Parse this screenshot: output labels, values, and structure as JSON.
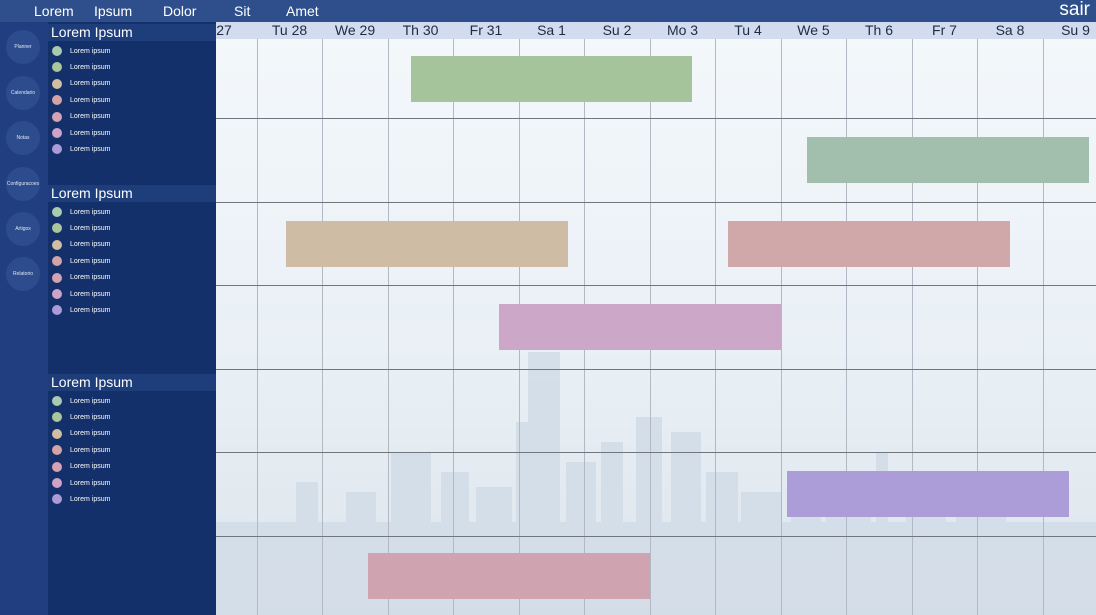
{
  "topnav": {
    "items": [
      "Lorem",
      "Ipsum",
      "Dolor",
      "Sit",
      "Amet"
    ],
    "exit_label": "sair"
  },
  "sidebar": {
    "buttons": [
      "Planner",
      "Calendario",
      "Notas",
      "Configuracoes",
      "Artigos",
      "Relatorio"
    ]
  },
  "groups": [
    {
      "title": "Lorem Ipsum",
      "items": [
        {
          "label": "Lorem ipsum",
          "color": "#a8cbb0"
        },
        {
          "label": "Lorem ipsum",
          "color": "#a9c79b"
        },
        {
          "label": "Lorem ipsum",
          "color": "#d2bfa2"
        },
        {
          "label": "Lorem ipsum",
          "color": "#d3a3a6"
        },
        {
          "label": "Lorem ipsum",
          "color": "#d6a2b3"
        },
        {
          "label": "Lorem ipsum",
          "color": "#cfa3c8"
        },
        {
          "label": "Lorem ipsum",
          "color": "#ad9bd8"
        }
      ]
    },
    {
      "title": "Lorem Ipsum",
      "items": [
        {
          "label": "Lorem ipsum",
          "color": "#a8cbb0"
        },
        {
          "label": "Lorem ipsum",
          "color": "#a9c79b"
        },
        {
          "label": "Lorem ipsum",
          "color": "#d2bfa2"
        },
        {
          "label": "Lorem ipsum",
          "color": "#d3a3a6"
        },
        {
          "label": "Lorem ipsum",
          "color": "#d6a2b3"
        },
        {
          "label": "Lorem ipsum",
          "color": "#cfa3c8"
        },
        {
          "label": "Lorem ipsum",
          "color": "#ad9bd8"
        }
      ]
    },
    {
      "title": "Lorem Ipsum",
      "items": [
        {
          "label": "Lorem ipsum",
          "color": "#a8cbb0"
        },
        {
          "label": "Lorem ipsum",
          "color": "#a9c79b"
        },
        {
          "label": "Lorem ipsum",
          "color": "#d2bfa2"
        },
        {
          "label": "Lorem ipsum",
          "color": "#d3a3a6"
        },
        {
          "label": "Lorem ipsum",
          "color": "#d6a2b3"
        },
        {
          "label": "Lorem ipsum",
          "color": "#cfa3c8"
        },
        {
          "label": "Lorem ipsum",
          "color": "#ad9bd8"
        }
      ]
    }
  ],
  "timeline": {
    "days": [
      "27",
      "Tu 28",
      "We 29",
      "Th 30",
      "Fr 31",
      "Sa 1",
      "Su 2",
      "Mo 3",
      "Tu 4",
      "We 5",
      "Th 6",
      "Fr 7",
      "Sa 8",
      "Su 9"
    ],
    "bars": [
      {
        "lane": 0,
        "start_day": 2.85,
        "end_day": 7.15,
        "color": "#a5c49b"
      },
      {
        "lane": 1,
        "start_day": 8.9,
        "end_day": 13.2,
        "color": "#a2bfad"
      },
      {
        "lane": 2,
        "start_day": 0.95,
        "end_day": 5.25,
        "color": "#cfbca4"
      },
      {
        "lane": 2,
        "start_day": 7.7,
        "end_day": 12.0,
        "color": "#d1a8a9"
      },
      {
        "lane": 3,
        "start_day": 4.2,
        "end_day": 8.5,
        "color": "#cda7c7"
      },
      {
        "lane": 5,
        "start_day": 8.6,
        "end_day": 12.9,
        "color": "#ac9dd8"
      },
      {
        "lane": 6,
        "start_day": 2.2,
        "end_day": 6.5,
        "color": "#cfa3af"
      }
    ]
  }
}
